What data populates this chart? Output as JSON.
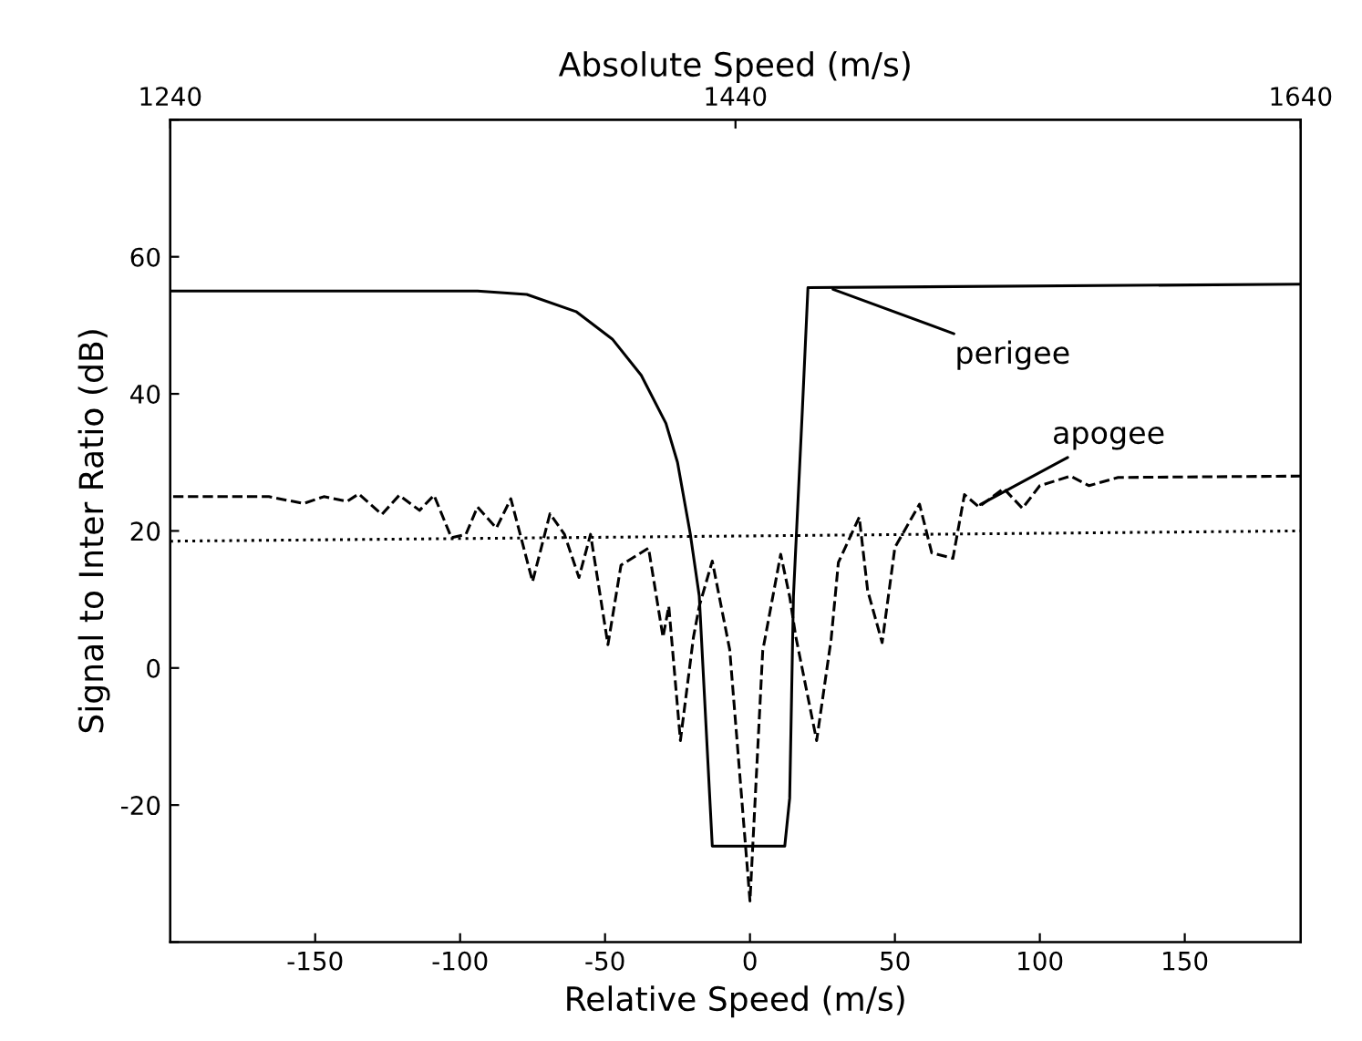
{
  "chart_data": {
    "type": "line",
    "xlabel": "Relative Speed (m/s)",
    "ylabel": "Signal to Inter Ratio (dB)",
    "x2label": "Absolute Speed (m/s)",
    "xlim": [
      -200,
      190
    ],
    "xticks": [
      -150,
      -100,
      -50,
      0,
      50,
      100,
      150
    ],
    "x2lim": [
      1240,
      1640
    ],
    "x2ticks": [
      1240,
      1440,
      1640
    ],
    "ylim": [
      -40,
      80
    ],
    "yticks": [
      {
        "value": -40,
        "label": null
      },
      -20,
      0,
      20,
      40,
      60,
      {
        "value": 80,
        "label": null
      }
    ],
    "grid": false,
    "legend": false,
    "series": [
      {
        "color": "#000000",
        "line_style": "solid",
        "x": [
          -200,
          -94,
          -77,
          -60,
          -47.5,
          -37.5,
          -29,
          -25,
          -20.6,
          -17.5,
          -13,
          12,
          13.7,
          15,
          18,
          20,
          190
        ],
        "values": [
          55,
          55,
          54.5,
          52,
          48,
          42.7,
          35.7,
          30,
          19.6,
          10.5,
          -26,
          -26,
          -19,
          10.5,
          37,
          55.5,
          56
        ]
      },
      {
        "color": "#000000",
        "line_style": "dashed",
        "x": [
          -199,
          -166,
          -154,
          -147,
          -139,
          -135,
          -127,
          -121,
          -114,
          -109,
          -103,
          -98,
          -94,
          -87.5,
          -82.5,
          -75,
          -69,
          -64,
          -59,
          -55,
          -49,
          -44.5,
          -35,
          -30,
          -28,
          -24,
          -19.5,
          -17.5,
          -13,
          -7,
          0,
          4.4,
          10.6,
          13.7,
          15.8,
          23,
          28,
          30.5,
          37.7,
          40.6,
          45.6,
          50,
          58.5,
          62.7,
          70,
          74,
          79,
          87.5,
          94,
          100,
          110.6,
          117,
          127,
          190
        ],
        "values": [
          25,
          25,
          24,
          25,
          24.3,
          25.4,
          22.4,
          25.2,
          23,
          25.2,
          19,
          19.5,
          23.5,
          20.4,
          24.7,
          12.6,
          22.5,
          19.5,
          13.2,
          19.5,
          3.4,
          15,
          17.5,
          4.5,
          9,
          -10.6,
          4.5,
          9,
          15.6,
          2.7,
          -34,
          2.5,
          16.6,
          10.4,
          4.6,
          -10.6,
          4.2,
          15.4,
          22,
          11.3,
          3.7,
          17.6,
          23.9,
          16.8,
          16,
          25.3,
          23.5,
          26.2,
          23.3,
          26.6,
          28,
          26.6,
          27.8,
          28
        ]
      },
      {
        "color": "#000000",
        "line_style": "dotted",
        "x": [
          -200,
          190
        ],
        "values": [
          18.5,
          20
        ]
      }
    ],
    "annotations": [
      {
        "text": "perigee",
        "x": 27,
        "y": 55.5
      },
      {
        "text": "apogee",
        "x": 78,
        "y": 23.5
      }
    ]
  }
}
